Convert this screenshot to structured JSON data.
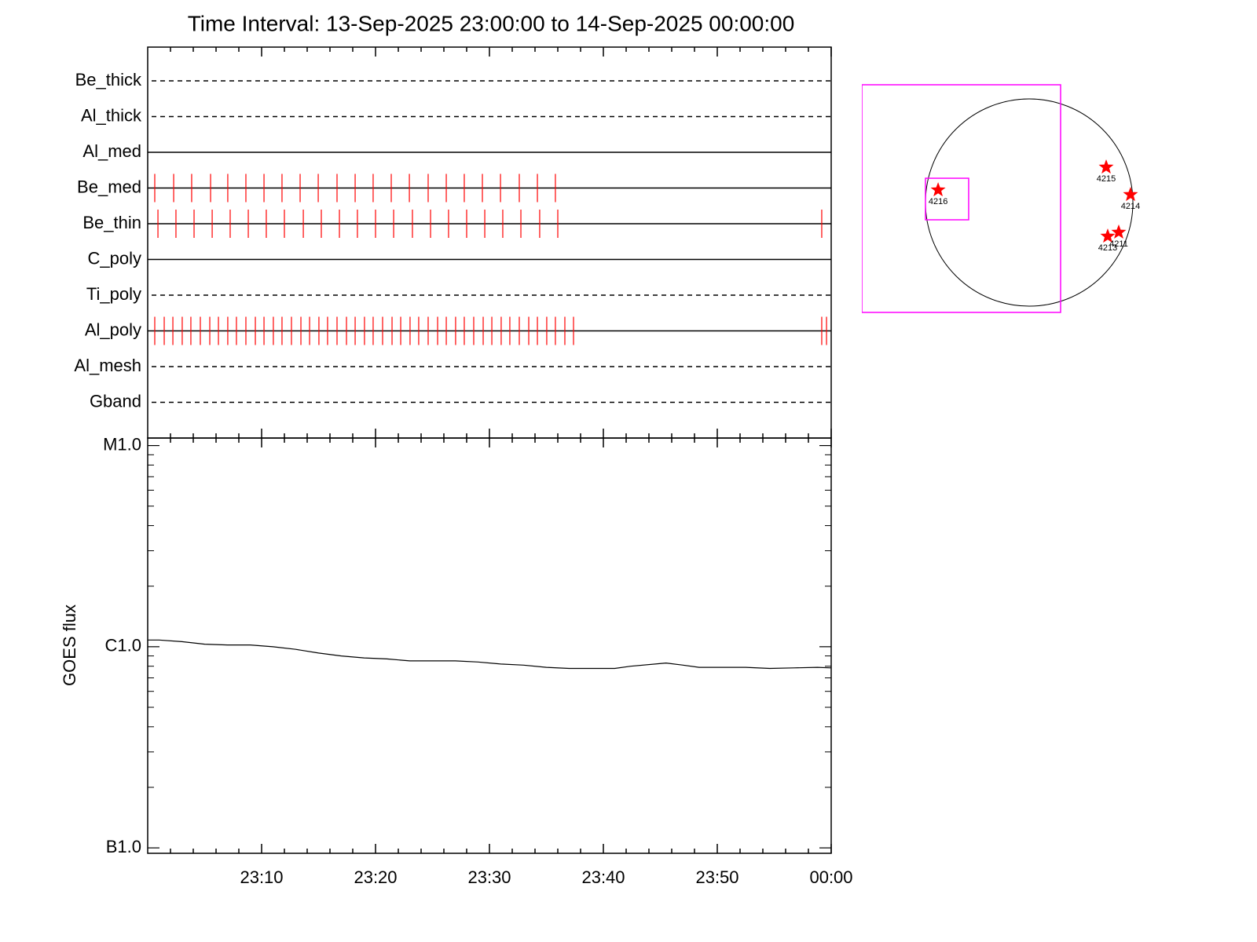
{
  "chart_data": [
    {
      "type": "timeline",
      "title": "Time Interval: 13-Sep-2025 23:00:00 to 14-Sep-2025 00:00:00",
      "categories": [
        "Be_thick",
        "Al_thick",
        "Al_med",
        "Be_med",
        "Be_thin",
        "C_poly",
        "Ti_poly",
        "Al_poly",
        "Al_mesh",
        "Gband"
      ],
      "line_styles": [
        "dashed",
        "dashed",
        "solid",
        "solid",
        "solid",
        "solid",
        "dashed",
        "solid",
        "dashed",
        "dashed"
      ],
      "color": "#ff0000",
      "xlim": [
        0,
        60
      ],
      "events": [
        [],
        [],
        [],
        [
          0.62,
          2.28,
          3.86,
          5.52,
          7.03,
          8.62,
          10.21,
          11.79,
          13.38,
          14.97,
          16.62,
          18.21,
          19.79,
          21.38,
          22.97,
          24.62,
          26.21,
          27.79,
          29.38,
          30.97,
          32.62,
          34.21,
          35.79
        ],
        [
          0.9,
          2.48,
          4.07,
          5.66,
          7.24,
          8.83,
          10.41,
          12.0,
          13.66,
          15.24,
          16.83,
          18.41,
          20.0,
          21.59,
          23.24,
          24.83,
          26.41,
          28.0,
          29.59,
          31.17,
          32.76,
          34.41,
          36.0,
          59.17
        ],
        [],
        [],
        [
          0.62,
          1.45,
          2.21,
          3.03,
          3.79,
          4.62,
          5.45,
          6.21,
          7.03,
          7.79,
          8.62,
          9.45,
          10.21,
          11.03,
          11.79,
          12.62,
          13.45,
          14.21,
          15.03,
          15.79,
          16.62,
          17.45,
          18.21,
          19.03,
          19.79,
          20.62,
          21.45,
          22.21,
          23.03,
          23.79,
          24.62,
          25.45,
          26.21,
          27.03,
          27.79,
          28.62,
          29.45,
          30.21,
          31.03,
          31.79,
          32.62,
          33.45,
          34.21,
          35.03,
          35.79,
          36.62,
          37.38,
          59.17,
          59.59
        ],
        [],
        []
      ]
    },
    {
      "type": "line",
      "ylabel": "GOES flux",
      "log_scale": true,
      "color": "#000000",
      "xlim": [
        0,
        60
      ],
      "xticks": [
        {
          "value": 10,
          "label": "23:10"
        },
        {
          "value": 20,
          "label": "23:20"
        },
        {
          "value": 30,
          "label": "23:30"
        },
        {
          "value": 40,
          "label": "23:40"
        },
        {
          "value": 50,
          "label": "23:50"
        },
        {
          "value": 60,
          "label": "00:00"
        }
      ],
      "ylim": [
        9.4e-08,
        1.09e-05
      ],
      "yticks": [
        {
          "value": 1e-07,
          "label": "B1.0"
        },
        {
          "value": 1e-06,
          "label": "C1.0"
        },
        {
          "value": 1e-05,
          "label": "M1.0"
        }
      ],
      "x": [
        0,
        1,
        3,
        5,
        7,
        9,
        11,
        13,
        15,
        17,
        19,
        21,
        23,
        25,
        27,
        29,
        31,
        33,
        35,
        37,
        39,
        41,
        42.4,
        45.5,
        47,
        48.4,
        50.5,
        52.5,
        54.6,
        56.7,
        58.8,
        60
      ],
      "values": [
        1.08e-06,
        1.08e-06,
        1.06e-06,
        1.03e-06,
        1.02e-06,
        1.02e-06,
        1e-06,
        9.7e-07,
        9.3e-07,
        9e-07,
        8.8e-07,
        8.7e-07,
        8.5e-07,
        8.5e-07,
        8.5e-07,
        8.4e-07,
        8.2e-07,
        8.1e-07,
        7.9e-07,
        7.8e-07,
        7.8e-07,
        7.8e-07,
        8e-07,
        8.3e-07,
        8.1e-07,
        7.9e-07,
        7.9e-07,
        7.9e-07,
        7.8e-07,
        7.85e-07,
        7.9e-07,
        7.85e-07
      ]
    },
    {
      "type": "scatter",
      "color": "#ff0000",
      "box_color": "#ff00ff",
      "labels": [
        "4216",
        "4215",
        "4214",
        "4213",
        "4211"
      ],
      "x": [
        -843,
        713,
        938,
        727,
        829
      ],
      "y": [
        116,
        327,
        73,
        -313,
        -276
      ],
      "boxes": [
        {
          "xlim": [
            -1549,
            291
          ],
          "ylim": [
            -1018,
            1091
          ]
        },
        {
          "xlim": [
            -960,
            -560
          ],
          "ylim": [
            -160,
            225
          ]
        }
      ]
    }
  ]
}
